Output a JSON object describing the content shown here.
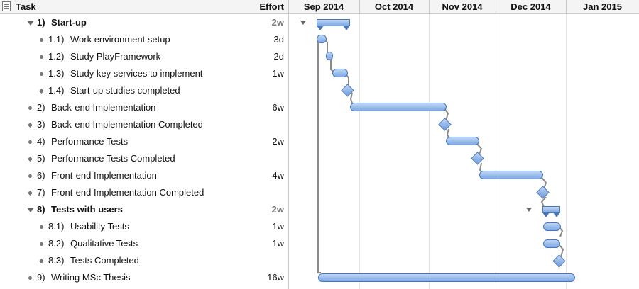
{
  "header": {
    "task_label": "Task",
    "effort_label": "Effort",
    "months": [
      "Sep 2014",
      "Oct 2014",
      "Nov 2014",
      "Dec 2014",
      "Jan 2015"
    ]
  },
  "colors": {
    "bar_fill": "#7fa9e3",
    "bar_border": "#4a76b8",
    "grid": "#e4e4e4",
    "header_bg": "#f4f4f4"
  },
  "tasks": [
    {
      "num": "1)",
      "label": "Start-up",
      "effort": "2w",
      "type": "summary"
    },
    {
      "num": "1.1)",
      "label": "Work environment setup",
      "effort": "3d",
      "type": "task"
    },
    {
      "num": "1.2)",
      "label": "Study PlayFramework",
      "effort": "2d",
      "type": "task"
    },
    {
      "num": "1.3)",
      "label": "Study key services to implement",
      "effort": "1w",
      "type": "task"
    },
    {
      "num": "1.4)",
      "label": "Start-up studies completed",
      "effort": "",
      "type": "milestone"
    },
    {
      "num": "2)",
      "label": "Back-end Implementation",
      "effort": "6w",
      "type": "task"
    },
    {
      "num": "3)",
      "label": "Back-end Implementation Completed",
      "effort": "",
      "type": "milestone"
    },
    {
      "num": "4)",
      "label": "Performance Tests",
      "effort": "2w",
      "type": "task"
    },
    {
      "num": "5)",
      "label": "Performance Tests Completed",
      "effort": "",
      "type": "milestone"
    },
    {
      "num": "6)",
      "label": "Front-end Implementation",
      "effort": "4w",
      "type": "task"
    },
    {
      "num": "7)",
      "label": "Front-end Implementation Completed",
      "effort": "",
      "type": "milestone"
    },
    {
      "num": "8)",
      "label": "Tests with users",
      "effort": "2w",
      "type": "summary"
    },
    {
      "num": "8.1)",
      "label": "Usability Tests",
      "effort": "1w",
      "type": "task"
    },
    {
      "num": "8.2)",
      "label": "Qualitative Tests",
      "effort": "1w",
      "type": "task"
    },
    {
      "num": "8.3)",
      "label": "Tests Completed",
      "effort": "",
      "type": "milestone"
    },
    {
      "num": "9)",
      "label": "Writing MSc Thesis",
      "effort": "16w",
      "type": "task"
    }
  ]
}
